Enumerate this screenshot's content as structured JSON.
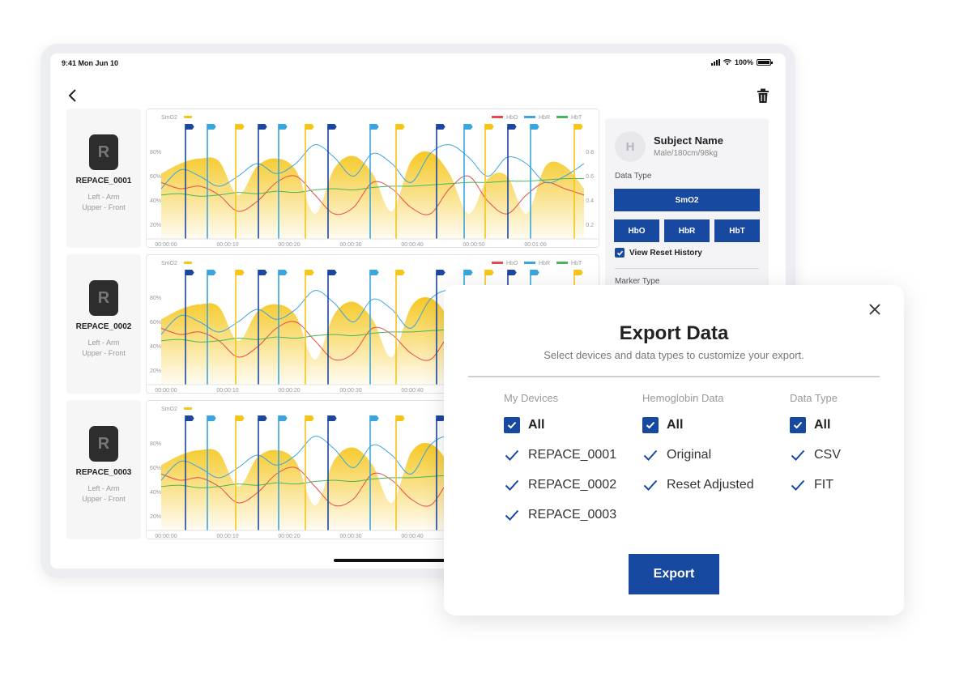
{
  "status_bar": {
    "time": "9:41  Mon Jun 10",
    "battery": "100%"
  },
  "devices": [
    {
      "name": "REPACE_0001",
      "location_line1": "Left - Arm",
      "location_line2": "Upper - Front"
    },
    {
      "name": "REPACE_0002",
      "location_line1": "Left - Arm",
      "location_line2": "Upper - Front"
    },
    {
      "name": "REPACE_0003",
      "location_line1": "Left - Arm",
      "location_line2": "Upper - Front"
    }
  ],
  "chart_data": {
    "type": "area",
    "series_legend": "SmO2",
    "legend": [
      "HbO",
      "HbR",
      "HbT"
    ],
    "y_left_ticks": [
      "80%",
      "60%",
      "40%",
      "20%"
    ],
    "y_right_ticks": [
      "0.8",
      "0.6",
      "0.4",
      "0.2"
    ],
    "x_ticks": [
      "00:00:00",
      "00:00:10",
      "00:00:20",
      "00:00:30",
      "00:00:40",
      "00:00:50",
      "00:01:00"
    ],
    "smo2_percent": [
      62,
      70,
      74,
      72,
      45,
      68,
      74,
      65,
      30,
      66,
      76,
      62,
      32,
      72,
      79,
      62,
      30,
      58,
      60,
      30,
      68,
      68,
      50
    ],
    "hbo": [
      0.55,
      0.5,
      0.52,
      0.45,
      0.32,
      0.4,
      0.55,
      0.6,
      0.45,
      0.3,
      0.35,
      0.55,
      0.5,
      0.35,
      0.3,
      0.5,
      0.6,
      0.4,
      0.3,
      0.45,
      0.55,
      0.5,
      0.45
    ],
    "hbr": [
      0.5,
      0.65,
      0.6,
      0.52,
      0.6,
      0.7,
      0.62,
      0.7,
      0.85,
      0.75,
      0.6,
      0.78,
      0.7,
      0.55,
      0.78,
      0.85,
      0.75,
      0.6,
      0.75,
      0.7,
      0.55,
      0.6,
      0.7
    ],
    "hbt": [
      0.45,
      0.46,
      0.44,
      0.45,
      0.47,
      0.46,
      0.48,
      0.47,
      0.49,
      0.5,
      0.49,
      0.51,
      0.52,
      0.52,
      0.53,
      0.54,
      0.55,
      0.55,
      0.56,
      0.56,
      0.57,
      0.58,
      0.58
    ],
    "colors": {
      "smo2": "#f5c518",
      "hbo": "#e84a4a",
      "hbr": "#3aa5de",
      "hbt": "#47b85a"
    }
  },
  "subject": {
    "avatar_initial": "H",
    "name": "Subject Name",
    "meta": "Male/180cm/98kg"
  },
  "panel": {
    "data_type_label": "Data Type",
    "smo2_button": "SmO2",
    "hbo_button": "HbO",
    "hbr_button": "HbR",
    "hbt_button": "HbT",
    "view_reset_history": "View Reset History",
    "marker_type_label": "Marker Type"
  },
  "modal": {
    "title": "Export Data",
    "subtitle": "Select devices and data types to customize your export.",
    "columns": [
      {
        "heading": "My Devices",
        "all_label": "All",
        "options": [
          "REPACE_0001",
          "REPACE_0002",
          "REPACE_0003"
        ]
      },
      {
        "heading": "Hemoglobin Data",
        "all_label": "All",
        "options": [
          "Original",
          "Reset Adjusted"
        ]
      },
      {
        "heading": "Data Type",
        "all_label": "All",
        "options": [
          "CSV",
          "FIT"
        ]
      }
    ],
    "export_button": "Export"
  },
  "colors": {
    "accent": "#1749a0"
  }
}
